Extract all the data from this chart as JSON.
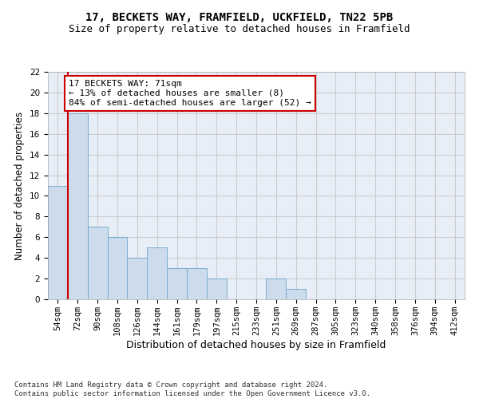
{
  "title_line1": "17, BECKETS WAY, FRAMFIELD, UCKFIELD, TN22 5PB",
  "title_line2": "Size of property relative to detached houses in Framfield",
  "xlabel": "Distribution of detached houses by size in Framfield",
  "ylabel": "Number of detached properties",
  "categories": [
    "54sqm",
    "72sqm",
    "90sqm",
    "108sqm",
    "126sqm",
    "144sqm",
    "161sqm",
    "179sqm",
    "197sqm",
    "215sqm",
    "233sqm",
    "251sqm",
    "269sqm",
    "287sqm",
    "305sqm",
    "323sqm",
    "340sqm",
    "358sqm",
    "376sqm",
    "394sqm",
    "412sqm"
  ],
  "values": [
    11,
    18,
    7,
    6,
    4,
    5,
    3,
    3,
    2,
    0,
    0,
    2,
    1,
    0,
    0,
    0,
    0,
    0,
    0,
    0,
    0
  ],
  "bar_color": "#ccdcec",
  "bar_edge_color": "#7aabcc",
  "vline_color": "#cc0000",
  "annotation_text": "17 BECKETS WAY: 71sqm\n← 13% of detached houses are smaller (8)\n84% of semi-detached houses are larger (52) →",
  "annotation_box_color": "#ffffff",
  "annotation_box_edge": "#cc0000",
  "ylim": [
    0,
    22
  ],
  "yticks": [
    0,
    2,
    4,
    6,
    8,
    10,
    12,
    14,
    16,
    18,
    20,
    22
  ],
  "grid_color": "#cccccc",
  "bg_color": "#e8eef8",
  "footnote": "Contains HM Land Registry data © Crown copyright and database right 2024.\nContains public sector information licensed under the Open Government Licence v3.0.",
  "title_fontsize": 10,
  "subtitle_fontsize": 9,
  "axis_label_fontsize": 8.5,
  "tick_fontsize": 7.5,
  "annotation_fontsize": 8,
  "footnote_fontsize": 6.5
}
